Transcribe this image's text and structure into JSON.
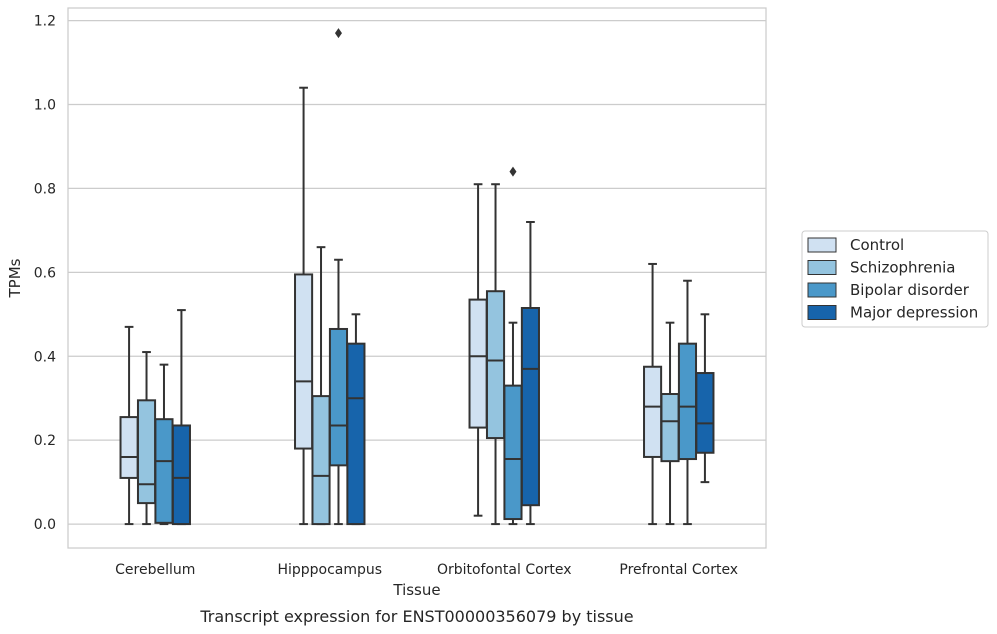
{
  "chart_data": {
    "type": "box",
    "xlabel": "Tissue",
    "ylabel": "TPMs",
    "caption": "Transcript expression for ENST00000356079 by tissue",
    "ylim": [
      -0.057,
      1.23
    ],
    "yticks": [
      "0.0",
      "0.2",
      "0.4",
      "0.6",
      "0.8",
      "1.0",
      "1.2"
    ],
    "grid": true,
    "legend_position": "right",
    "categories": [
      "Cerebellum",
      "Hipppocampus",
      "Orbitofontal Cortex",
      "Prefrontal Cortex"
    ],
    "series": [
      {
        "name": "Control",
        "color": "#d0e1f2",
        "boxes": [
          {
            "whislo": 0.0,
            "q1": 0.11,
            "med": 0.16,
            "q3": 0.255,
            "whishi": 0.47,
            "fliers": []
          },
          {
            "whislo": 0.0,
            "q1": 0.18,
            "med": 0.34,
            "q3": 0.595,
            "whishi": 1.04,
            "fliers": []
          },
          {
            "whislo": 0.02,
            "q1": 0.23,
            "med": 0.4,
            "q3": 0.535,
            "whishi": 0.81,
            "fliers": []
          },
          {
            "whislo": 0.0,
            "q1": 0.16,
            "med": 0.28,
            "q3": 0.375,
            "whishi": 0.62,
            "fliers": []
          }
        ]
      },
      {
        "name": "Schizophrenia",
        "color": "#94c4df",
        "boxes": [
          {
            "whislo": 0.0,
            "q1": 0.05,
            "med": 0.095,
            "q3": 0.295,
            "whishi": 0.41,
            "fliers": []
          },
          {
            "whislo": 0.0,
            "q1": 0.0,
            "med": 0.115,
            "q3": 0.305,
            "whishi": 0.66,
            "fliers": []
          },
          {
            "whislo": 0.0,
            "q1": 0.205,
            "med": 0.39,
            "q3": 0.555,
            "whishi": 0.81,
            "fliers": []
          },
          {
            "whislo": 0.0,
            "q1": 0.15,
            "med": 0.245,
            "q3": 0.31,
            "whishi": 0.48,
            "fliers": []
          }
        ]
      },
      {
        "name": "Bipolar disorder",
        "color": "#4a98c9",
        "boxes": [
          {
            "whislo": 0.0,
            "q1": 0.003,
            "med": 0.15,
            "q3": 0.25,
            "whishi": 0.38,
            "fliers": []
          },
          {
            "whislo": 0.0,
            "q1": 0.14,
            "med": 0.235,
            "q3": 0.465,
            "whishi": 0.63,
            "fliers": [
              1.17
            ]
          },
          {
            "whislo": 0.0,
            "q1": 0.012,
            "med": 0.155,
            "q3": 0.33,
            "whishi": 0.48,
            "fliers": [
              0.84
            ]
          },
          {
            "whislo": 0.0,
            "q1": 0.155,
            "med": 0.28,
            "q3": 0.43,
            "whishi": 0.58,
            "fliers": []
          }
        ]
      },
      {
        "name": "Major depression",
        "color": "#1764ab",
        "boxes": [
          {
            "whislo": 0.0,
            "q1": 0.0,
            "med": 0.11,
            "q3": 0.235,
            "whishi": 0.51,
            "fliers": []
          },
          {
            "whislo": 0.0,
            "q1": 0.0,
            "med": 0.3,
            "q3": 0.43,
            "whishi": 0.5,
            "fliers": []
          },
          {
            "whislo": 0.0,
            "q1": 0.045,
            "med": 0.37,
            "q3": 0.515,
            "whishi": 0.72,
            "fliers": []
          },
          {
            "whislo": 0.1,
            "q1": 0.17,
            "med": 0.24,
            "q3": 0.36,
            "whishi": 0.5,
            "fliers": []
          }
        ]
      }
    ]
  }
}
